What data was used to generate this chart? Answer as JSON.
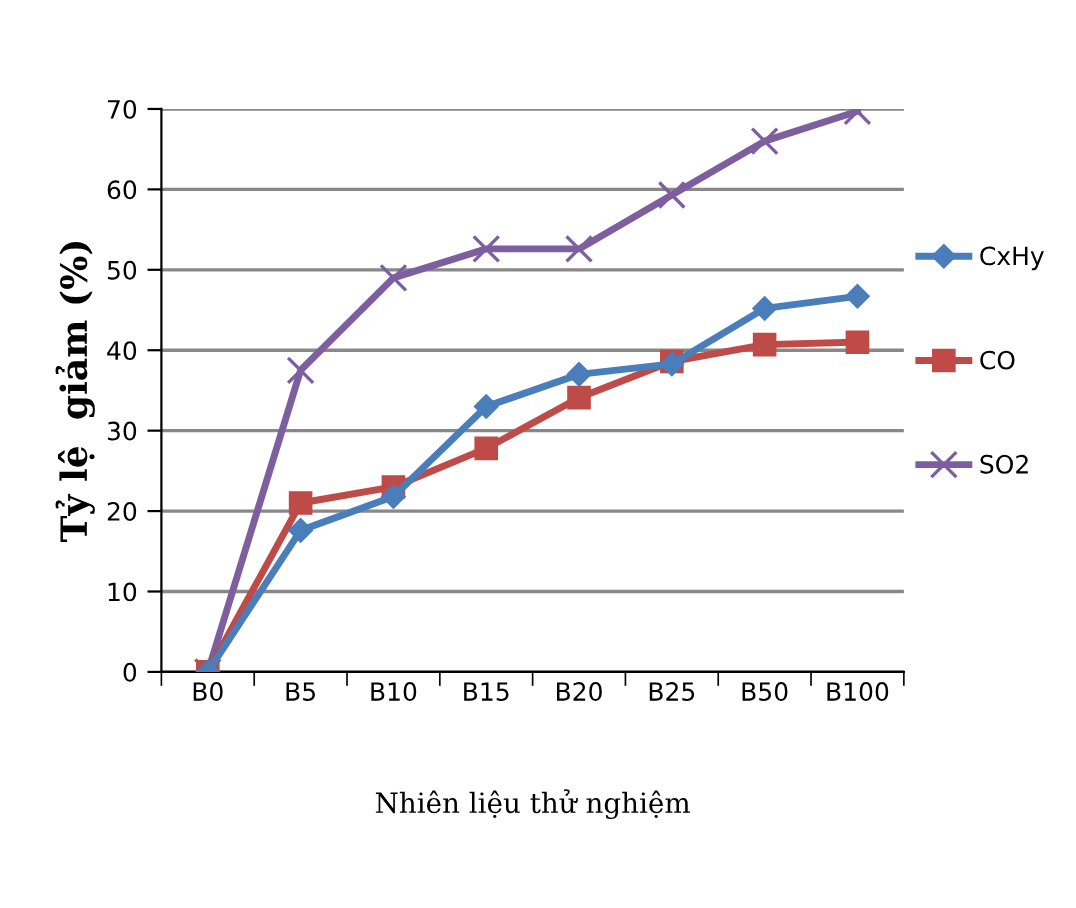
{
  "chart_data": {
    "type": "line",
    "xlabel": "Nhiên liệu thử nghiệm",
    "ylabel": "Tỷ lệ  giảm (%)",
    "categories": [
      "B0",
      "B5",
      "B10",
      "B15",
      "B20",
      "B25",
      "B50",
      "B100"
    ],
    "series": [
      {
        "name": "CxHy",
        "color": "#4a7ebb",
        "marker": "diamond",
        "values": [
          0,
          17.6,
          21.8,
          33,
          37,
          38.3,
          45.2,
          46.7
        ]
      },
      {
        "name": "CO",
        "color": "#be4b48",
        "marker": "square",
        "values": [
          0,
          21,
          23,
          27.8,
          34.1,
          38.6,
          40.7,
          41
        ]
      },
      {
        "name": "SO2",
        "color": "#7d5fa0",
        "marker": "cross",
        "values": [
          0,
          37.5,
          49,
          52.6,
          52.6,
          59.3,
          66,
          69.7
        ]
      }
    ],
    "ylim": [
      0,
      70
    ],
    "yticks": [
      0,
      10,
      20,
      30,
      40,
      50,
      60,
      70
    ],
    "grid": "y",
    "legend": "right"
  }
}
